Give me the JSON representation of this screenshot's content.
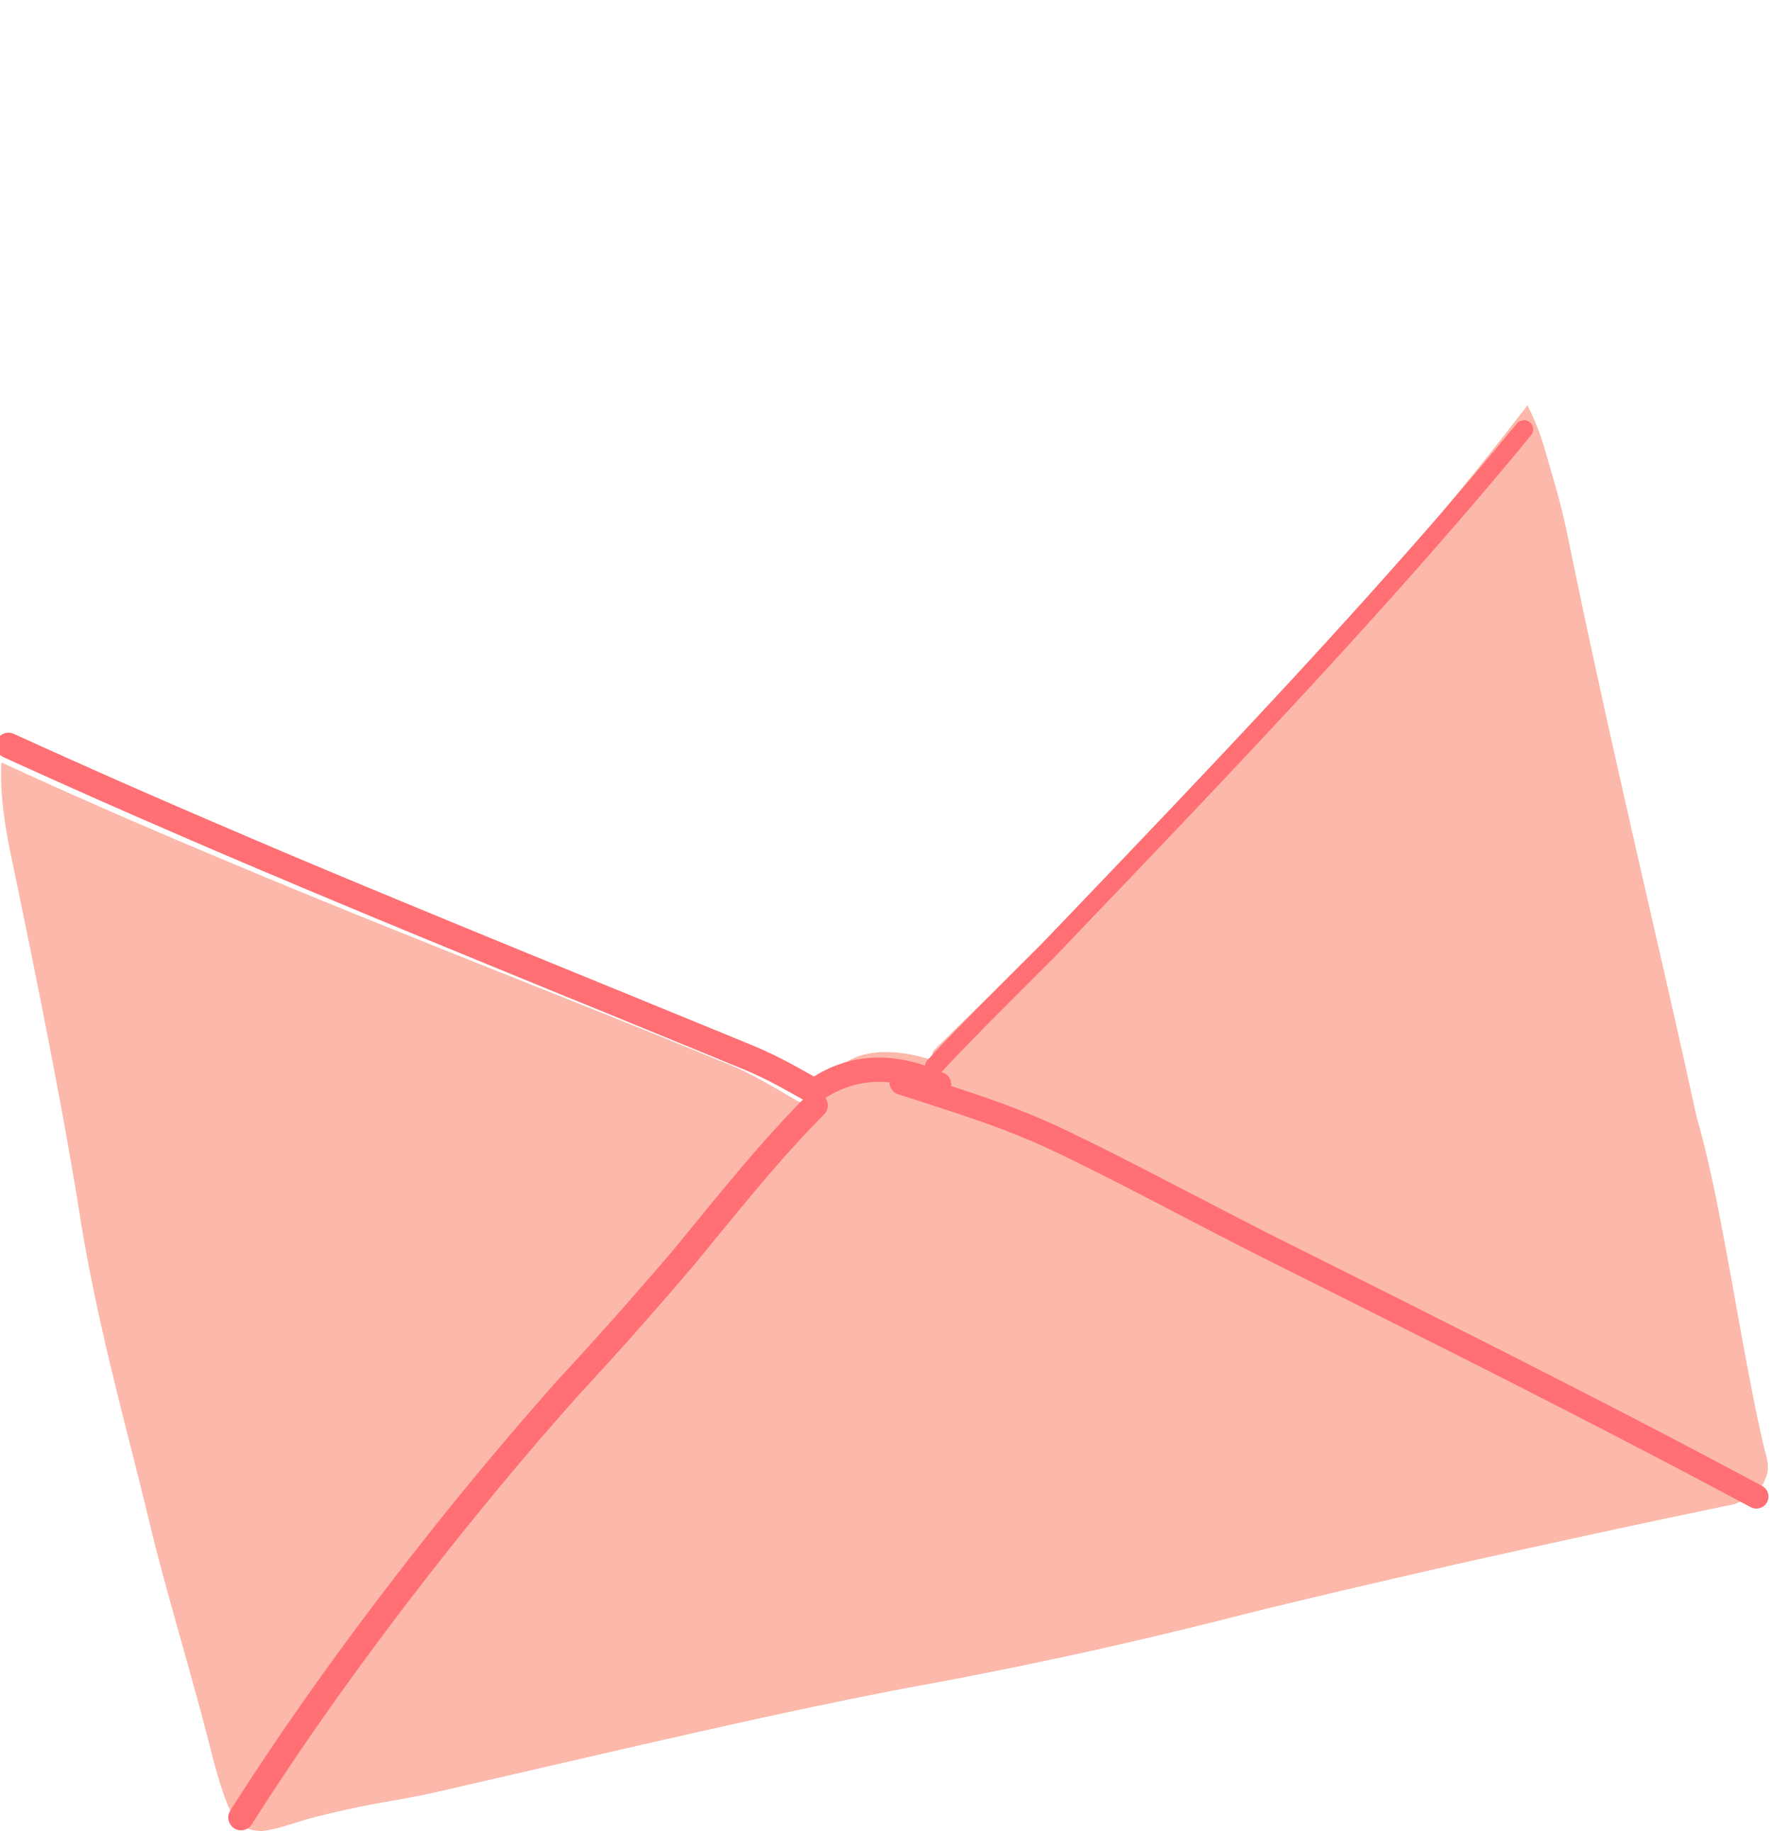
{
  "illustration": {
    "subject": "envelope-icon",
    "colors": {
      "background": "#ffffff",
      "fill": "#FCB8AA",
      "stroke": "#FF6F73"
    }
  }
}
